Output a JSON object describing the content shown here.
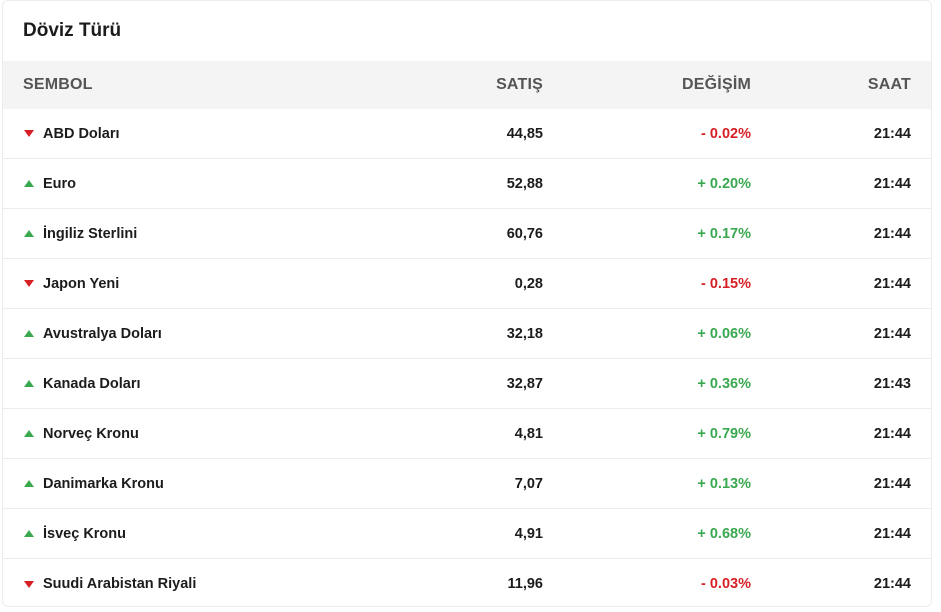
{
  "title": "Döviz Türü",
  "colors": {
    "negative": "#d71f26",
    "positive": "#3aa84f",
    "header_bg": "#f4f4f4"
  },
  "headers": {
    "symbol": "SEMBOL",
    "sell": "SATIŞ",
    "change": "DEĞİŞİM",
    "time": "SAAT"
  },
  "rows": [
    {
      "name": "ABD Doları",
      "sell": "44,85",
      "change": "- 0.02%",
      "time": "21:44",
      "direction": "down",
      "icon": "triangle-down-icon"
    },
    {
      "name": "Euro",
      "sell": "52,88",
      "change": "+ 0.20%",
      "time": "21:44",
      "direction": "up",
      "icon": "triangle-up-icon"
    },
    {
      "name": "İngiliz Sterlini",
      "sell": "60,76",
      "change": "+ 0.17%",
      "time": "21:44",
      "direction": "up",
      "icon": "triangle-up-icon"
    },
    {
      "name": "Japon Yeni",
      "sell": "0,28",
      "change": "- 0.15%",
      "time": "21:44",
      "direction": "down",
      "icon": "triangle-down-icon"
    },
    {
      "name": "Avustralya Doları",
      "sell": "32,18",
      "change": "+ 0.06%",
      "time": "21:44",
      "direction": "up",
      "icon": "triangle-up-icon"
    },
    {
      "name": "Kanada Doları",
      "sell": "32,87",
      "change": "+ 0.36%",
      "time": "21:43",
      "direction": "up",
      "icon": "triangle-up-icon"
    },
    {
      "name": "Norveç Kronu",
      "sell": "4,81",
      "change": "+ 0.79%",
      "time": "21:44",
      "direction": "up",
      "icon": "triangle-up-icon"
    },
    {
      "name": "Danimarka Kronu",
      "sell": "7,07",
      "change": "+ 0.13%",
      "time": "21:44",
      "direction": "up",
      "icon": "triangle-up-icon"
    },
    {
      "name": "İsveç Kronu",
      "sell": "4,91",
      "change": "+ 0.68%",
      "time": "21:44",
      "direction": "up",
      "icon": "triangle-up-icon"
    },
    {
      "name": "Suudi Arabistan Riyali",
      "sell": "11,96",
      "change": "- 0.03%",
      "time": "21:44",
      "direction": "down",
      "icon": "triangle-down-icon"
    }
  ]
}
